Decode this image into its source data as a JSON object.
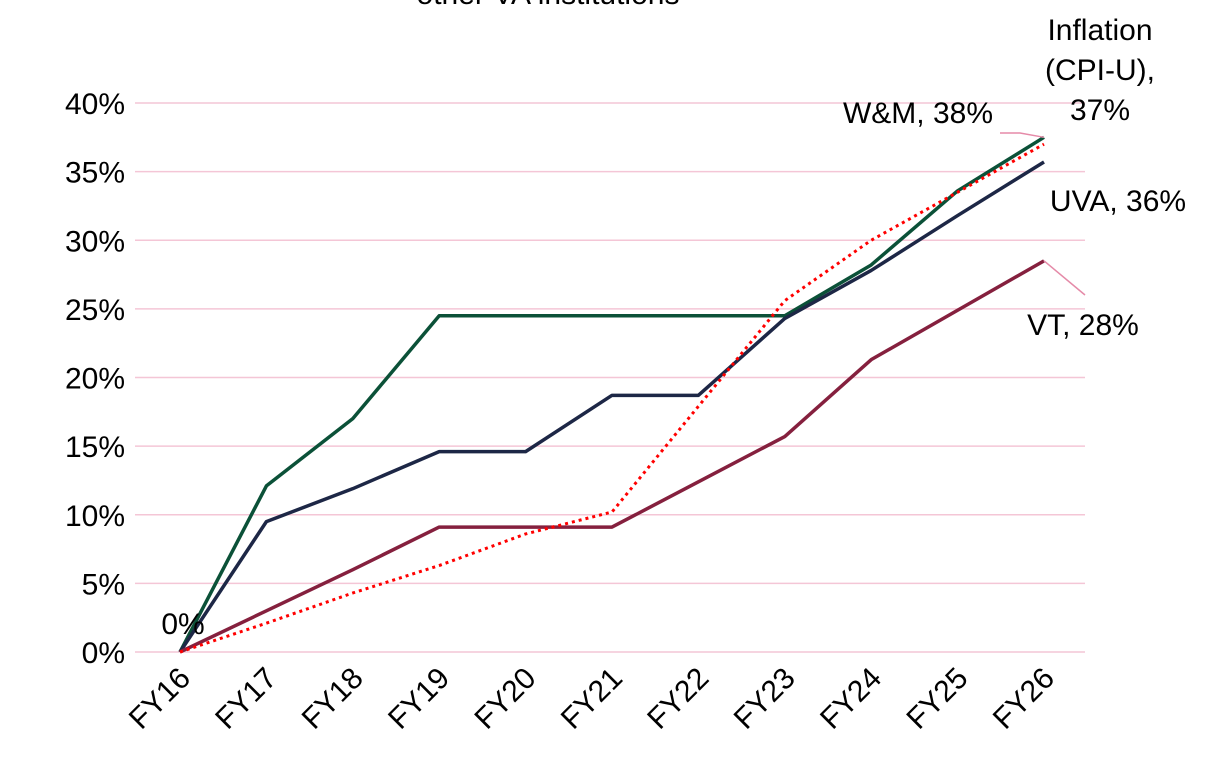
{
  "chart_data": {
    "type": "line",
    "title": "other VA institutions",
    "categories": [
      "FY16",
      "FY17",
      "FY18",
      "FY19",
      "FY20",
      "FY21",
      "FY22",
      "FY23",
      "FY24",
      "FY25",
      "FY26"
    ],
    "ylim": [
      0,
      40
    ],
    "yticks": [
      {
        "value": 0,
        "label": "0%"
      },
      {
        "value": 5,
        "label": "5%"
      },
      {
        "value": 10,
        "label": "10%"
      },
      {
        "value": 15,
        "label": "15%"
      },
      {
        "value": 20,
        "label": "20%"
      },
      {
        "value": 25,
        "label": "25%"
      },
      {
        "value": 30,
        "label": "30%"
      },
      {
        "value": 35,
        "label": "35%"
      },
      {
        "value": 40,
        "label": "40%"
      }
    ],
    "grid": true,
    "series": [
      {
        "name": "W&M",
        "color": "#0b5138",
        "values": [
          0,
          12.1,
          17.0,
          24.5,
          24.5,
          24.5,
          24.5,
          24.5,
          28.2,
          33.6,
          37.5
        ]
      },
      {
        "name": "UVA",
        "color": "#1d2746",
        "values": [
          0,
          9.5,
          11.9,
          14.6,
          14.6,
          18.7,
          18.7,
          24.3,
          27.8,
          31.8,
          35.7
        ]
      },
      {
        "name": "VT",
        "color": "#85203e",
        "values": [
          0,
          3.0,
          6.0,
          9.1,
          9.1,
          9.1,
          12.4,
          15.7,
          21.3,
          24.9,
          28.5
        ]
      },
      {
        "name": "Inflation (CPI-U)",
        "color": "#ff0000",
        "dashed": true,
        "values": [
          0,
          2.1,
          4.3,
          6.3,
          8.6,
          10.2,
          17.9,
          25.6,
          30.0,
          33.5,
          37.0
        ]
      }
    ],
    "annotations": [
      {
        "text": "W&M, 38%"
      },
      {
        "lines": [
          "Inflation",
          "(CPI-U),",
          "37%"
        ]
      },
      {
        "text": "UVA, 36%"
      },
      {
        "text": "VT, 28%"
      },
      {
        "text": "0%"
      }
    ]
  }
}
